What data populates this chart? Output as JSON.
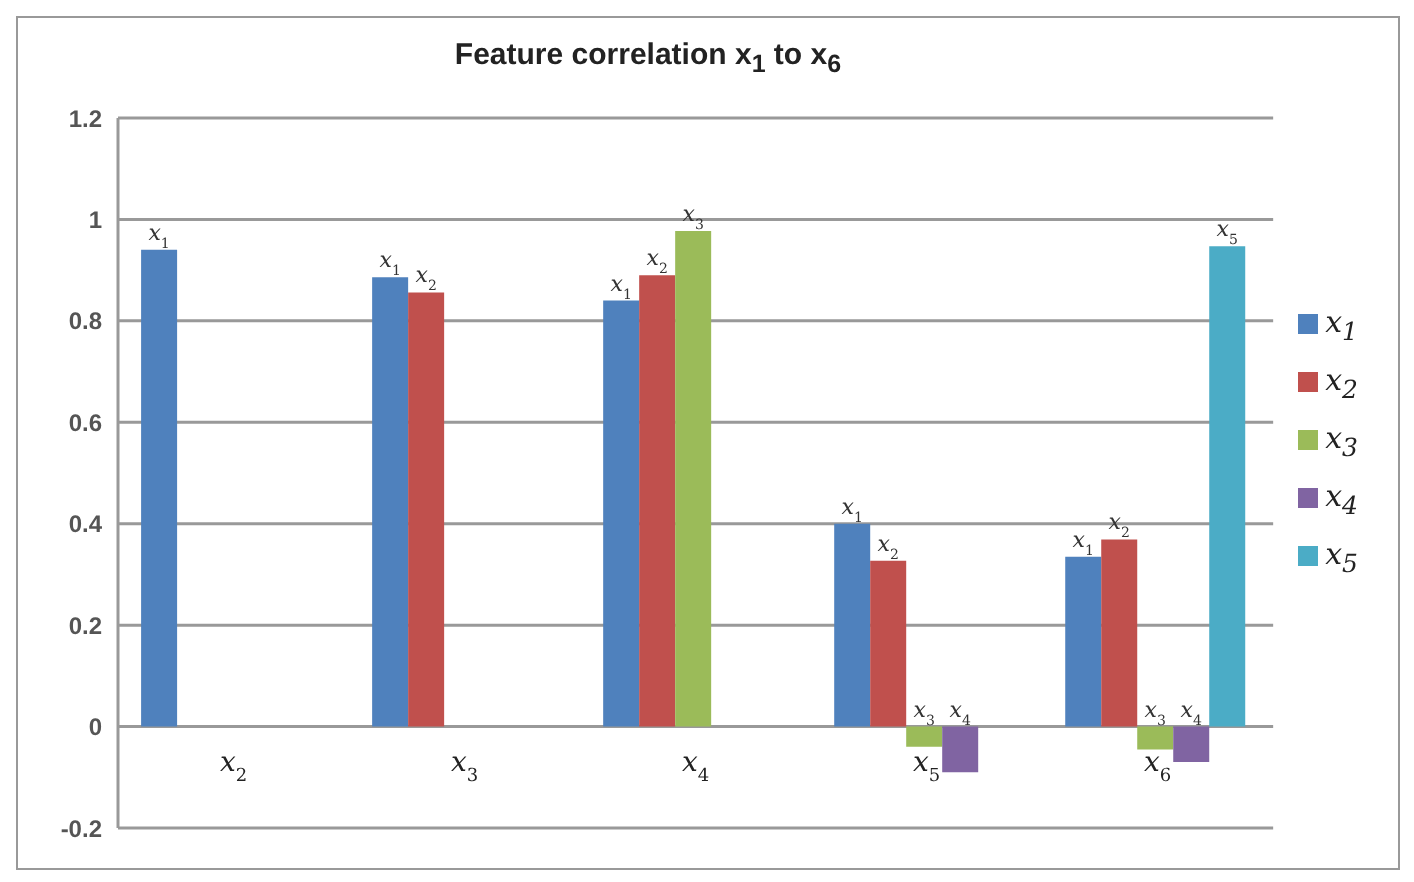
{
  "chart_data": {
    "type": "bar",
    "title": "Feature correlation x$_{1}$ to x$_{6}$",
    "categories": [
      "x$_{2}$",
      "x$_{3}$",
      "x$_{4}$",
      "x$_{5}$",
      "x$_{6}$"
    ],
    "series": [
      {
        "name": "x$_{1}$",
        "color": "#4f81bd",
        "values": [
          0.94,
          0.886,
          0.84,
          0.4,
          0.335
        ]
      },
      {
        "name": "x$_{2}$",
        "color": "#c0504d",
        "values": [
          null,
          0.856,
          0.89,
          0.327,
          0.369
        ]
      },
      {
        "name": "x$_{3}$",
        "color": "#9bbb59",
        "values": [
          null,
          null,
          0.977,
          -0.04,
          -0.045
        ]
      },
      {
        "name": "x$_{4}$",
        "color": "#8064a2",
        "values": [
          null,
          null,
          null,
          -0.09,
          -0.07
        ]
      },
      {
        "name": "x$_{5}$",
        "color": "#4bacc6",
        "values": [
          null,
          null,
          null,
          null,
          0.947
        ]
      }
    ],
    "annotations": [
      "x$_{1}$",
      "x$_{1}$",
      "x$_{2}$",
      "x$_{1}$",
      "x$_{2}$",
      "x$_{3}$",
      "x$_{1}$",
      "x$_{2}$",
      "x$_{3}$",
      "x$_{4}$",
      "x$_{1}$",
      "x$_{2}$",
      "x$_{3}$",
      "x$_{4}$",
      "x$_{5}$"
    ],
    "ylim": [
      -0.2,
      1.2
    ],
    "yticks": [
      -0.2,
      0,
      0.2,
      0.4,
      0.6,
      0.8,
      1,
      1.2
    ],
    "grid": "y",
    "legend": "right"
  }
}
